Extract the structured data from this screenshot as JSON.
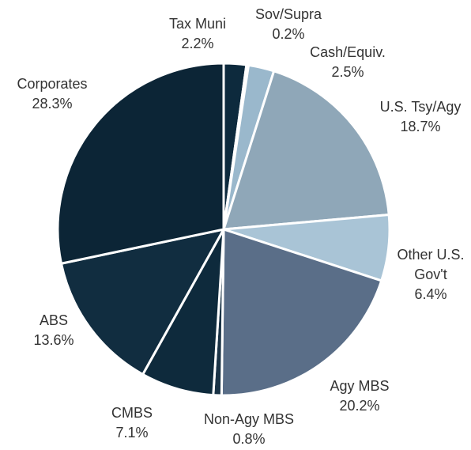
{
  "chart_data": {
    "type": "pie",
    "categories": [
      "Tax Muni",
      "Sov/Supra",
      "Cash/Equiv.",
      "U.S. Tsy/Agy",
      "Other U.S. Gov't",
      "Agy MBS",
      "Non-Agy MBS",
      "CMBS",
      "ABS",
      "Corporates"
    ],
    "values": [
      2.2,
      0.2,
      2.5,
      18.7,
      6.4,
      20.2,
      0.8,
      7.1,
      13.6,
      28.3
    ],
    "value_labels": [
      "2.2%",
      "0.2%",
      "2.5%",
      "18.7%",
      "6.4%",
      "20.2%",
      "0.8%",
      "7.1%",
      "13.6%",
      "28.3%"
    ],
    "colors": [
      "#0d2a3d",
      "#b8cfdd",
      "#9ab8cc",
      "#8fa7b8",
      "#a9c4d6",
      "#5a6e88",
      "#1a3346",
      "#0e2a3c",
      "#112d40",
      "#0c2536"
    ]
  }
}
